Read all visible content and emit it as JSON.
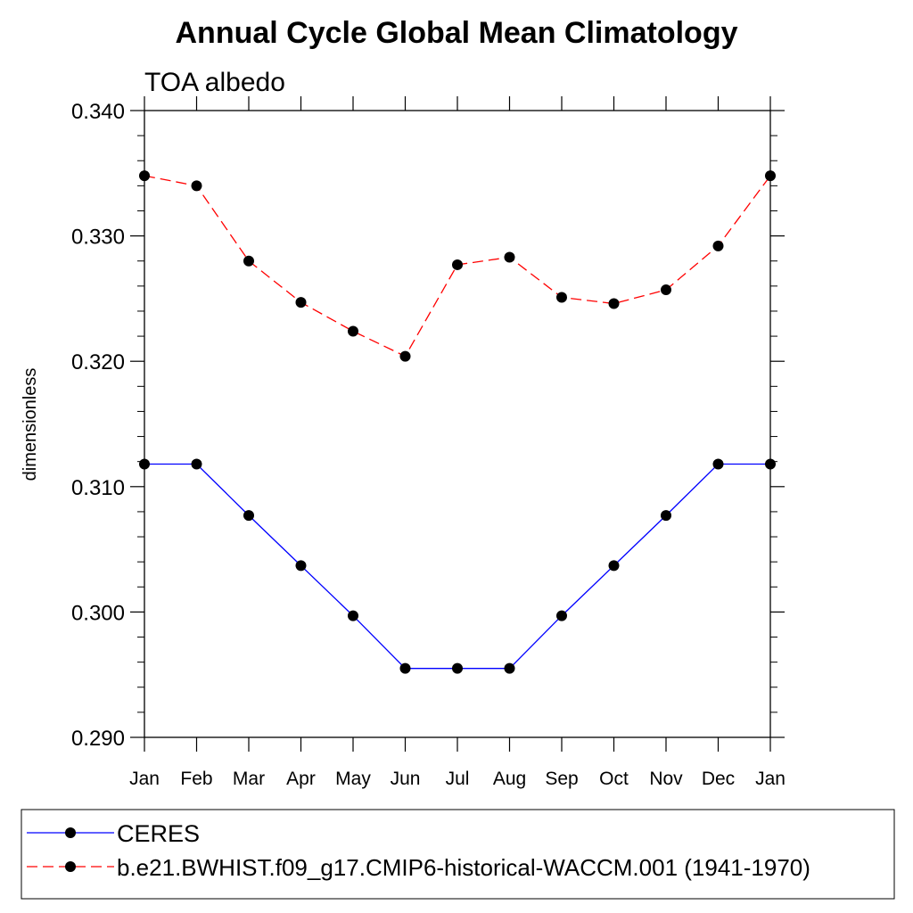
{
  "chart_data": {
    "type": "line",
    "title": "Annual Cycle Global Mean Climatology",
    "subtitle": "TOA albedo",
    "xlabel": "",
    "ylabel": "dimensionless",
    "categories": [
      "Jan",
      "Feb",
      "Mar",
      "Apr",
      "May",
      "Jun",
      "Jul",
      "Aug",
      "Sep",
      "Oct",
      "Nov",
      "Dec",
      "Jan"
    ],
    "ylim": [
      0.29,
      0.34
    ],
    "yticks": [
      0.29,
      0.3,
      0.31,
      0.32,
      0.33,
      0.34
    ],
    "ytick_labels": [
      "0.290",
      "0.300",
      "0.310",
      "0.320",
      "0.330",
      "0.340"
    ],
    "y_minor_step": 0.002,
    "grid": false,
    "legend_position": "bottom",
    "series": [
      {
        "name": "CERES",
        "color": "#0000ff",
        "style": "solid",
        "marker": "filled-circle",
        "values": [
          0.3118,
          0.3118,
          0.3077,
          0.3037,
          0.2997,
          0.2955,
          0.2955,
          0.2955,
          0.2997,
          0.3037,
          0.3077,
          0.3118,
          0.3118
        ]
      },
      {
        "name": "b.e21.BWHIST.f09_g17.CMIP6-historical-WACCM.001 (1941-1970)",
        "color": "#ff0000",
        "style": "dashed",
        "marker": "filled-circle",
        "values": [
          0.3348,
          0.334,
          0.328,
          0.3247,
          0.3224,
          0.3204,
          0.3277,
          0.3283,
          0.3251,
          0.3246,
          0.3257,
          0.3292,
          0.3348
        ]
      }
    ]
  }
}
